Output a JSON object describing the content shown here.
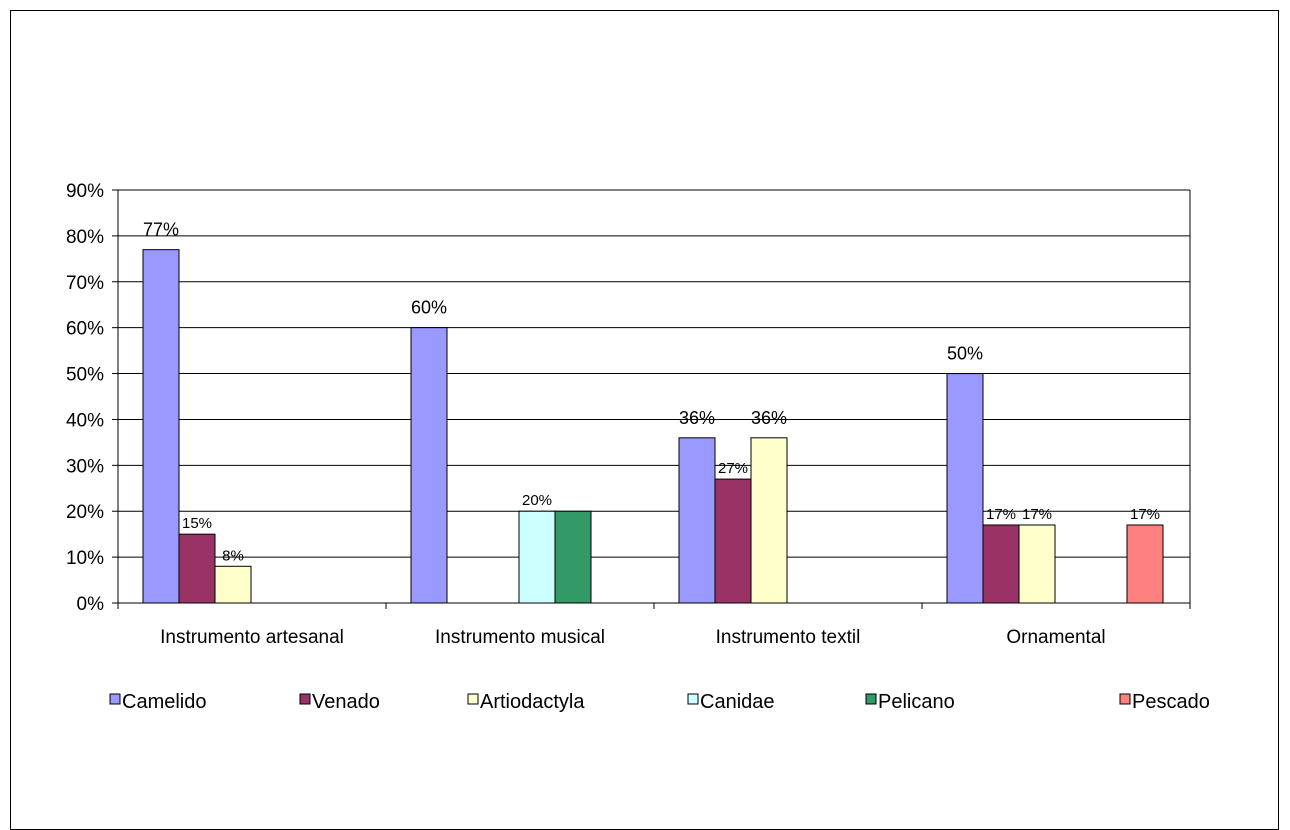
{
  "chart_data": {
    "type": "bar",
    "categories": [
      "Instrumento artesanal",
      "Instrumento musical",
      "Instrumento textil",
      "Ornamental"
    ],
    "series": [
      {
        "name": "Camelido",
        "color": "#9999ff",
        "values": [
          0.77,
          0.6,
          0.36,
          0.5
        ],
        "labels": [
          "77%",
          "60%",
          "36%",
          "50%"
        ]
      },
      {
        "name": "Venado",
        "color": "#993366",
        "values": [
          0.15,
          null,
          0.27,
          0.17
        ],
        "labels": [
          "15%",
          null,
          "27%",
          "17%"
        ]
      },
      {
        "name": "Artiodactyla",
        "color": "#ffffcc",
        "values": [
          0.08,
          null,
          0.36,
          0.17
        ],
        "labels": [
          "8%",
          null,
          "36%",
          "17%"
        ]
      },
      {
        "name": "Canidae",
        "color": "#ccffff",
        "values": [
          null,
          0.2,
          null,
          null
        ],
        "labels": [
          null,
          "20%",
          null,
          null
        ]
      },
      {
        "name": "Pelicano",
        "color": "#339966",
        "values": [
          null,
          0.2,
          null,
          null
        ],
        "labels": [
          null,
          null,
          null,
          null
        ]
      },
      {
        "name": "Pescado",
        "color": "#ff8080",
        "values": [
          null,
          null,
          null,
          0.17
        ],
        "labels": [
          null,
          null,
          null,
          "17%"
        ]
      }
    ],
    "y_ticks": [
      "0%",
      "10%",
      "20%",
      "30%",
      "40%",
      "50%",
      "60%",
      "70%",
      "80%",
      "90%"
    ],
    "ylim": [
      0,
      0.9
    ],
    "grid": true,
    "legend_position": "bottom"
  }
}
